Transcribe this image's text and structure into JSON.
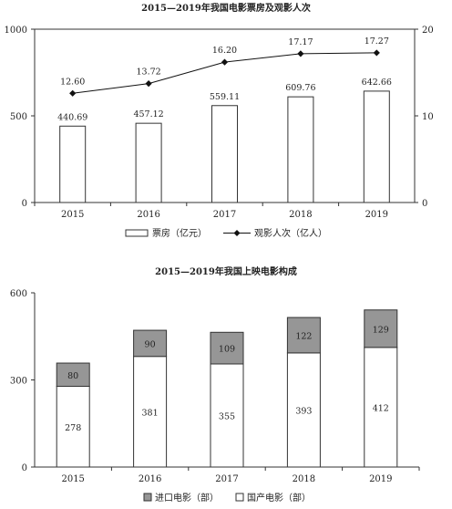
{
  "chart_data": [
    {
      "type": "bar",
      "title": "2015—2019年我国电影票房及观影人次",
      "categories": [
        "2015",
        "2016",
        "2017",
        "2018",
        "2019"
      ],
      "legend_position": "bottom",
      "grid": false,
      "series": [
        {
          "name": "票房（亿元）",
          "type": "bar",
          "axis": "left",
          "values": [
            440.69,
            457.12,
            559.11,
            609.76,
            642.66
          ],
          "labels": [
            "440.69",
            "457.12",
            "559.11",
            "609.76",
            "642.66"
          ]
        },
        {
          "name": "观影人次（亿人）",
          "type": "line",
          "axis": "right",
          "marker": "diamond",
          "values": [
            12.6,
            13.72,
            16.2,
            17.17,
            17.27
          ],
          "labels": [
            "12.60",
            "13.72",
            "16.20",
            "17.17",
            "17.27"
          ]
        }
      ],
      "y_left": {
        "ylim": [
          0,
          1000
        ],
        "ticks": [
          "0",
          "500",
          "1000"
        ]
      },
      "y_right": {
        "ylim": [
          0,
          20
        ],
        "ticks": [
          "0",
          "10",
          "20"
        ]
      }
    },
    {
      "type": "bar",
      "stacked": true,
      "title": "2015—2019年我国上映电影构成",
      "categories": [
        "2015",
        "2016",
        "2017",
        "2018",
        "2019"
      ],
      "legend_position": "bottom",
      "grid": false,
      "ylim": [
        0,
        600
      ],
      "ticks": [
        "0",
        "300",
        "600"
      ],
      "series": [
        {
          "name": "国产电影（部）",
          "fill": "#ffffff",
          "values": [
            278,
            381,
            355,
            393,
            412
          ]
        },
        {
          "name": "进口电影（部）",
          "fill": "#969696",
          "values": [
            80,
            90,
            109,
            122,
            129
          ]
        }
      ],
      "legend_order": [
        "进口电影（部）",
        "国产电影（部）"
      ]
    }
  ]
}
